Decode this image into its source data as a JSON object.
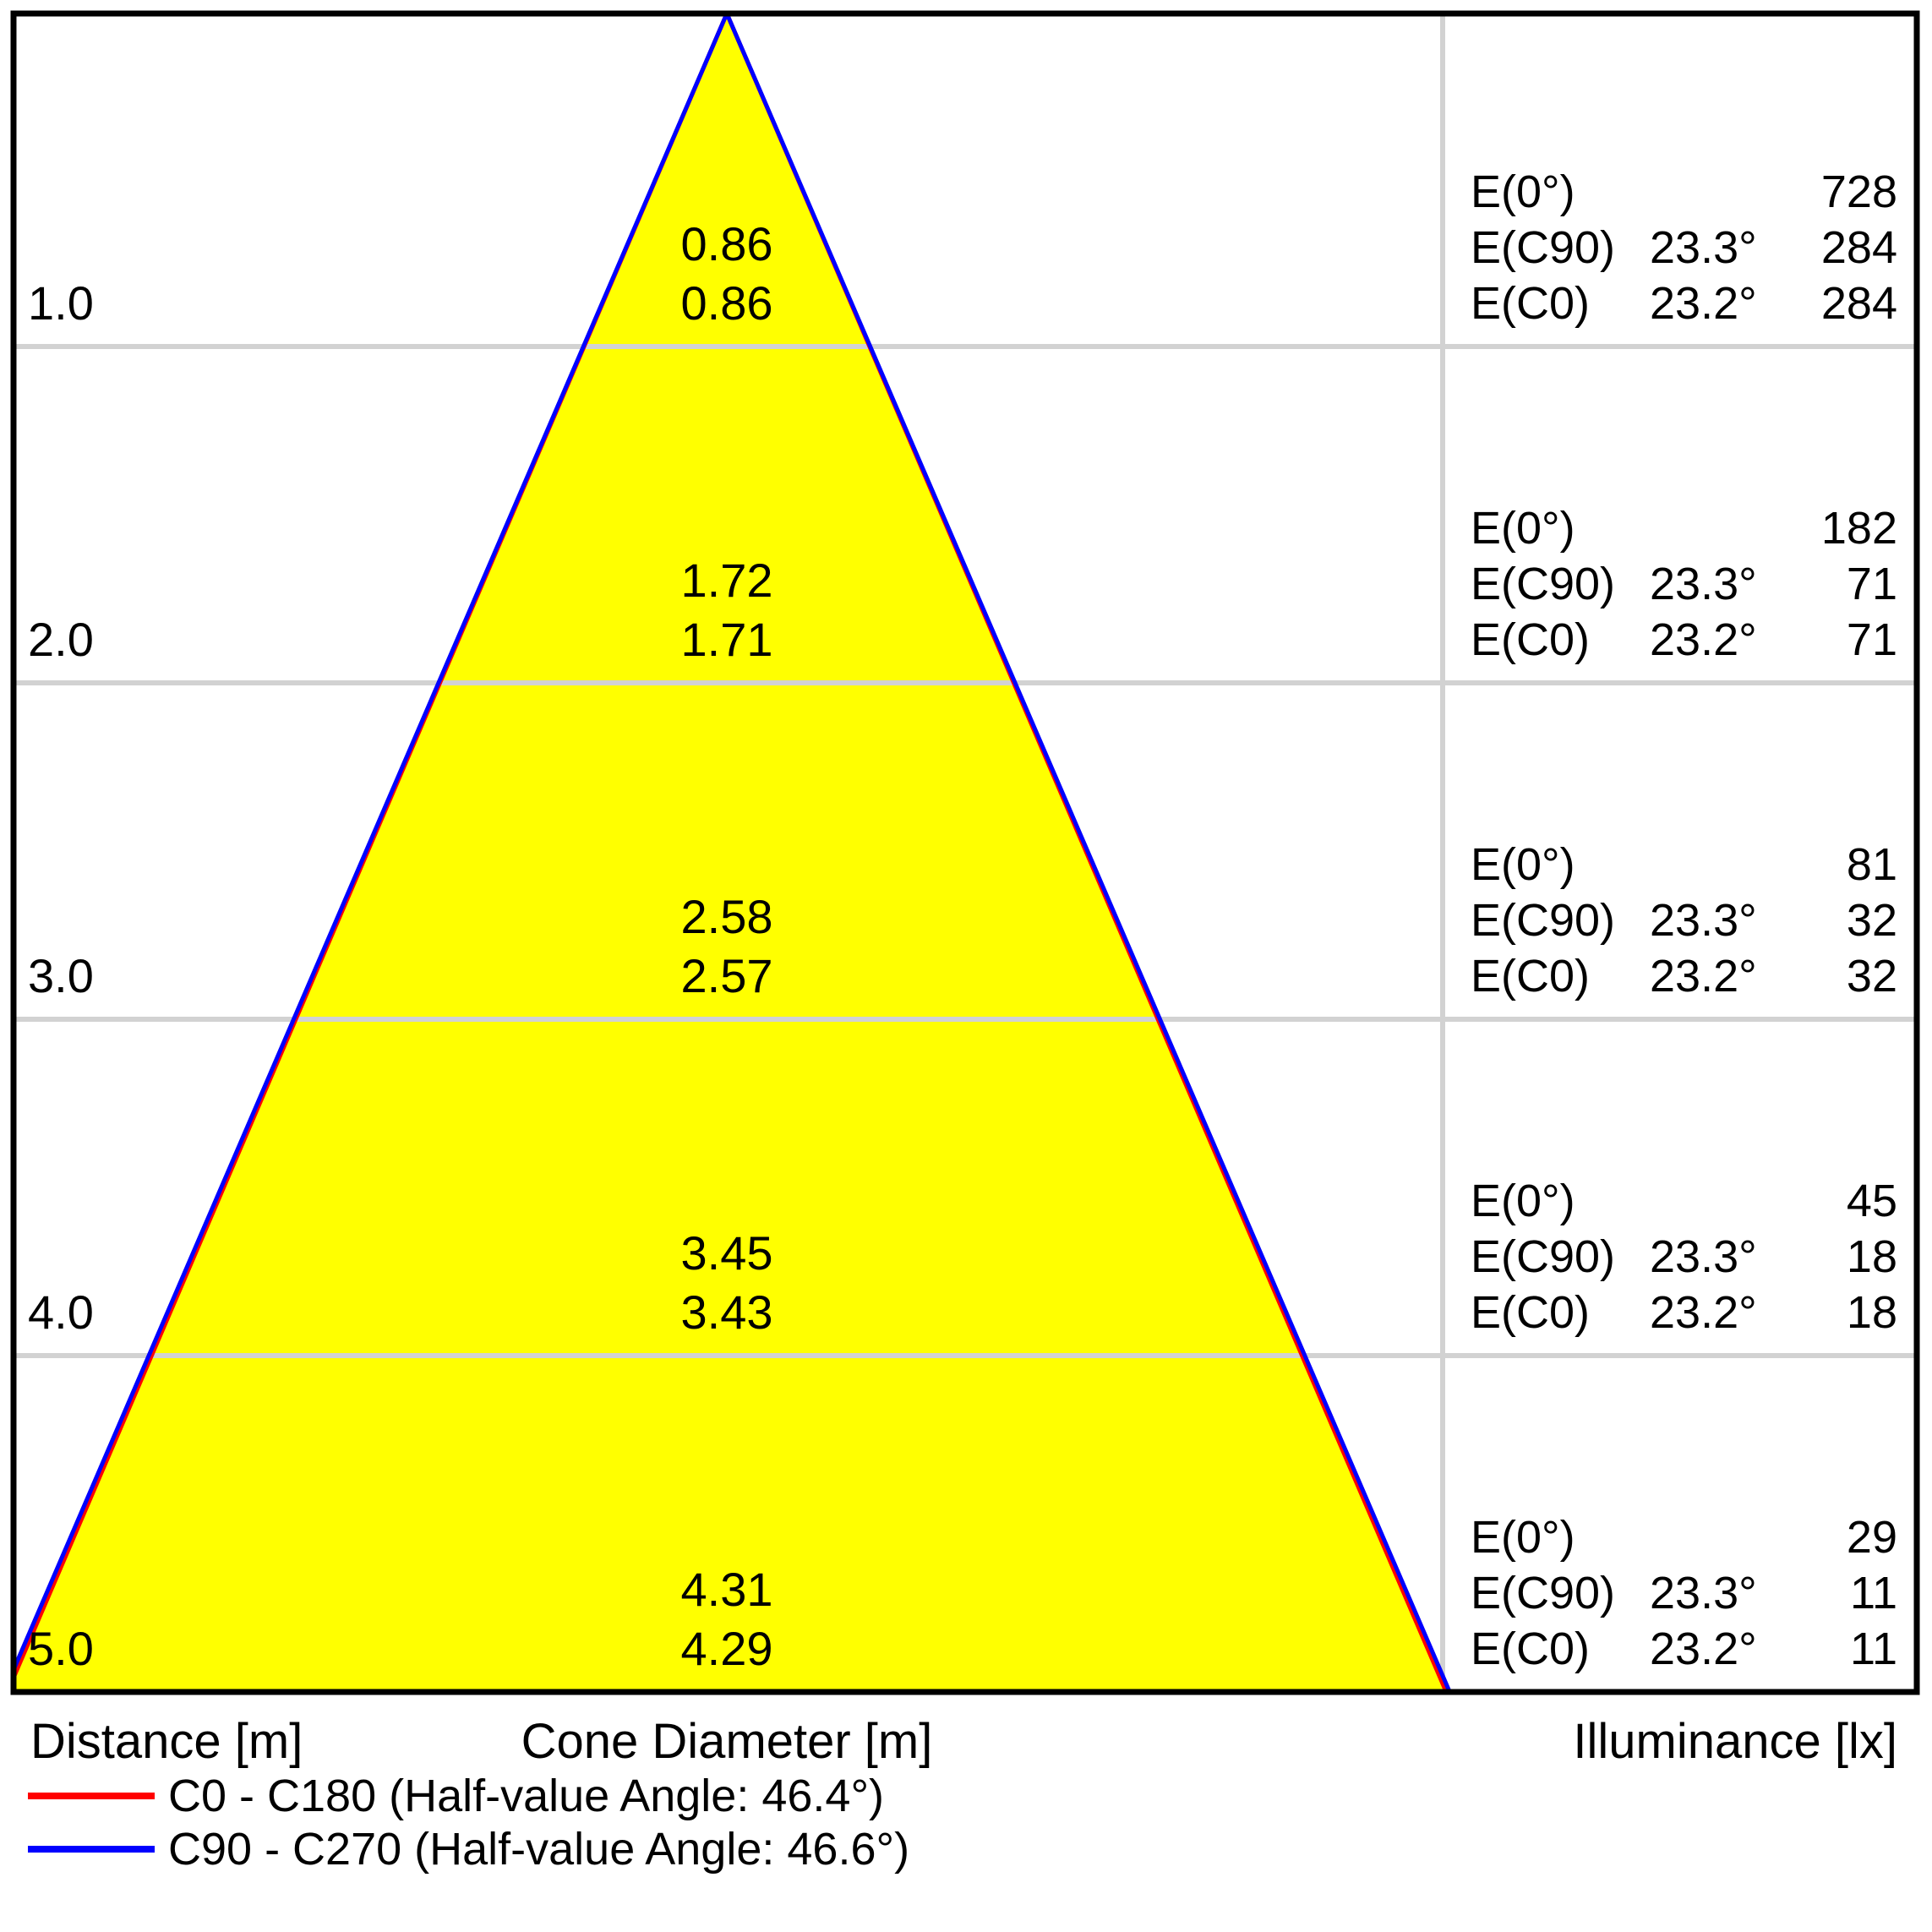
{
  "colors": {
    "cone_yellow": "#ffff00",
    "c0_red": "#ff0000",
    "c90_blue": "#0000ff",
    "grid_gray": "#d2d2d2",
    "border_black": "#000000"
  },
  "chart_data": {
    "type": "area",
    "subtype": "photometric-light-cone-diagram",
    "title": "",
    "xlabel": "Cone Diameter [m]",
    "ylabel": "Distance [m]",
    "value_label": "Illuminance [lx]",
    "y_range_m": [
      0,
      5
    ],
    "grid": "horizontal lines at each metre",
    "half_value_angles": {
      "c0": 46.4,
      "c90": 46.6
    },
    "labels": {
      "e_0": "E(0°)",
      "e_c90": "E(C90)",
      "e_c0": "E(C0)"
    },
    "rows": [
      {
        "distance": "1.0",
        "cone_diameter_c90": "0.86",
        "cone_diameter_c0": "0.86",
        "e_0": "728",
        "e_c90_half_angle": "23.3°",
        "e_c90": "284",
        "e_c0_half_angle": "23.2°",
        "e_c0": "284"
      },
      {
        "distance": "2.0",
        "cone_diameter_c90": "1.72",
        "cone_diameter_c0": "1.71",
        "e_0": "182",
        "e_c90_half_angle": "23.3°",
        "e_c90": "71",
        "e_c0_half_angle": "23.2°",
        "e_c0": "71"
      },
      {
        "distance": "3.0",
        "cone_diameter_c90": "2.58",
        "cone_diameter_c0": "2.57",
        "e_0": "81",
        "e_c90_half_angle": "23.3°",
        "e_c90": "32",
        "e_c0_half_angle": "23.2°",
        "e_c0": "32"
      },
      {
        "distance": "4.0",
        "cone_diameter_c90": "3.45",
        "cone_diameter_c0": "3.43",
        "e_0": "45",
        "e_c90_half_angle": "23.3°",
        "e_c90": "18",
        "e_c0_half_angle": "23.2°",
        "e_c0": "18"
      },
      {
        "distance": "5.0",
        "cone_diameter_c90": "4.31",
        "cone_diameter_c0": "4.29",
        "e_0": "29",
        "e_c90_half_angle": "23.3°",
        "e_c90": "11",
        "e_c0_half_angle": "23.2°",
        "e_c0": "11"
      }
    ]
  },
  "footer": {
    "distance": "Distance [m]",
    "cone_diameter": "Cone Diameter [m]",
    "illuminance": "Illuminance [lx]"
  },
  "legend": [
    {
      "label": "C0 - C180 (Half-value Angle: 46.4°)",
      "color": "#ff0000"
    },
    {
      "label": "C90 - C270 (Half-value Angle: 46.6°)",
      "color": "#0000ff"
    }
  ]
}
